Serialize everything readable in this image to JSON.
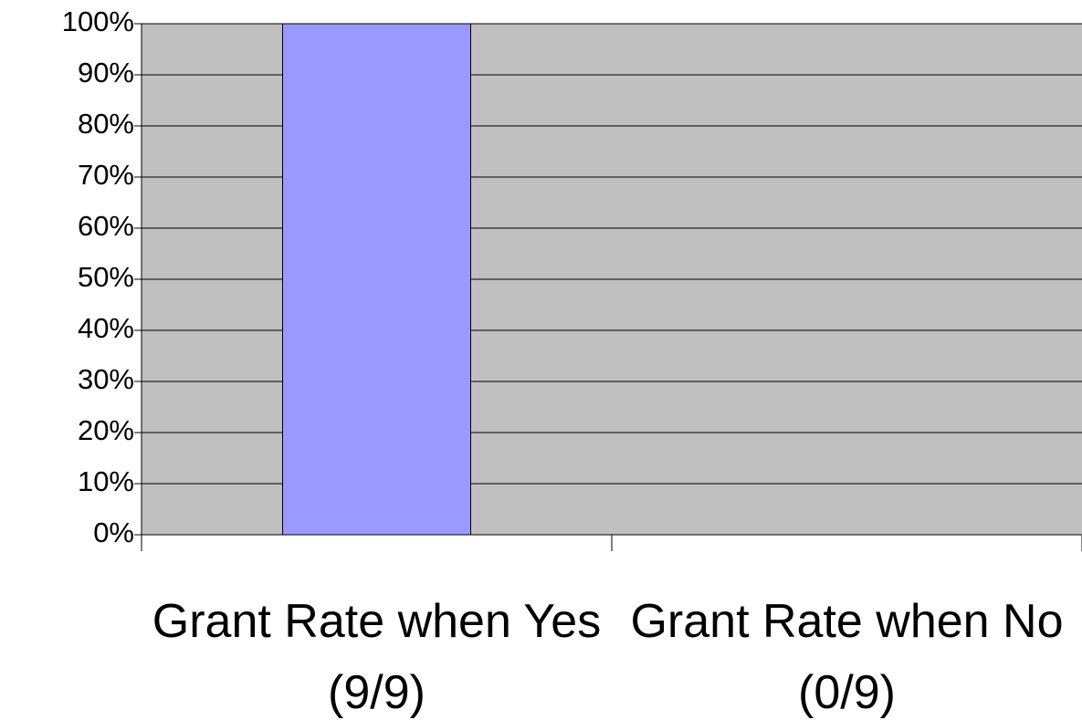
{
  "chart_data": {
    "type": "bar",
    "categories": [
      "Grant Rate when Yes (9/9)",
      "Grant Rate when No (0/9)"
    ],
    "values": [
      100,
      0
    ],
    "color": "#9999ff",
    "plot_background": "#c0c0c0",
    "ylim": [
      0,
      100
    ],
    "yticks": [
      {
        "value": 0,
        "label": "0%"
      },
      {
        "value": 10,
        "label": "10%"
      },
      {
        "value": 20,
        "label": "20%"
      },
      {
        "value": 30,
        "label": "30%"
      },
      {
        "value": 40,
        "label": "40%"
      },
      {
        "value": 50,
        "label": "50%"
      },
      {
        "value": 60,
        "label": "60%"
      },
      {
        "value": 70,
        "label": "70%"
      },
      {
        "value": 80,
        "label": "80%"
      },
      {
        "value": 90,
        "label": "90%"
      },
      {
        "value": 100,
        "label": "100%"
      }
    ],
    "grid": true
  }
}
